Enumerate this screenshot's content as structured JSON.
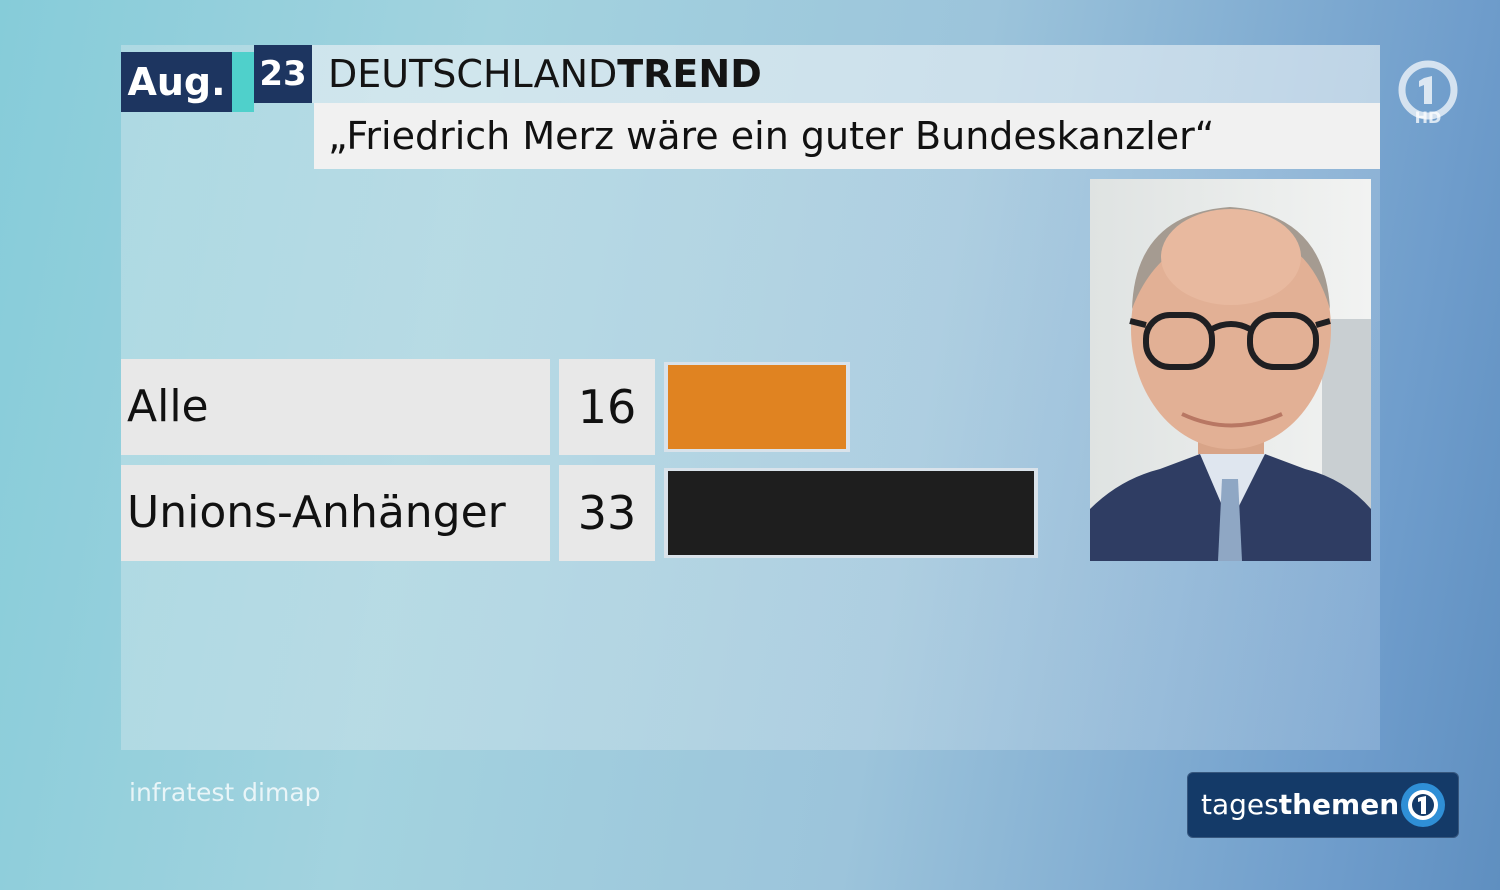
{
  "header": {
    "month": "Aug.",
    "day": "23",
    "series_regular": "DEUTSCHLAND",
    "series_bold": "TREND",
    "question": "„Friedrich Merz wäre ein guter Bundeskanzler“"
  },
  "chart_data": {
    "type": "bar",
    "orientation": "horizontal",
    "title": "„Friedrich Merz wäre ein guter Bundeskanzler“",
    "categories": [
      "Alle",
      "Unions-Anhänger"
    ],
    "values": [
      16,
      33
    ],
    "colors": [
      "#e08321",
      "#1e1e1e"
    ],
    "grid": false,
    "legend": "none"
  },
  "branding": {
    "channel_hd": "HD",
    "source": "infratest dimap",
    "show_regular": "tages",
    "show_bold": "themen"
  },
  "icons": {
    "channel_logo": "ard-one-logo-icon",
    "show_logo": "ard-one-round-icon",
    "portrait": "person-portrait"
  }
}
